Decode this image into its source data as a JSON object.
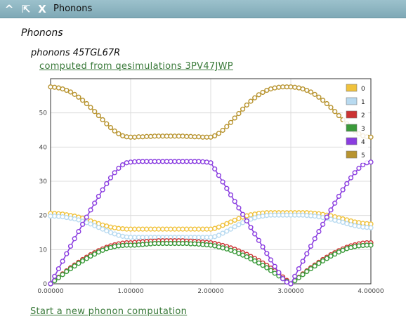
{
  "titlebar": {
    "collapse_glyph": "^",
    "expand_glyph": "⇱",
    "close_glyph": "X",
    "title": "Phonons"
  },
  "section_title": "Phonons",
  "subtitle": "phonons 45TGL67R",
  "computed_link": "computed from qesimulations 3PV47JWP",
  "start_link": "Start a new phonon computation",
  "chart_data": {
    "type": "line",
    "title": "",
    "xlabel": "",
    "ylabel": "",
    "xlim": [
      0,
      4
    ],
    "ylim": [
      0,
      60
    ],
    "x_ticks": [
      "0.00000",
      "1.00000",
      "2.00000",
      "3.00000",
      "4.00000"
    ],
    "y_ticks": [
      "0",
      "10",
      "20",
      "30",
      "40",
      "50"
    ],
    "grid": true,
    "legend_position": "top-right",
    "x": [
      0,
      0.05,
      0.1,
      0.15,
      0.2,
      0.25,
      0.3,
      0.35,
      0.4,
      0.45,
      0.5,
      0.55,
      0.6,
      0.65,
      0.7,
      0.75,
      0.8,
      0.85,
      0.9,
      0.95,
      1.0,
      1.05,
      1.1,
      1.15,
      1.2,
      1.25,
      1.3,
      1.35,
      1.4,
      1.45,
      1.5,
      1.55,
      1.6,
      1.65,
      1.7,
      1.75,
      1.8,
      1.85,
      1.9,
      1.95,
      2.0,
      2.05,
      2.1,
      2.15,
      2.2,
      2.25,
      2.3,
      2.35,
      2.4,
      2.45,
      2.5,
      2.55,
      2.6,
      2.65,
      2.7,
      2.75,
      2.8,
      2.85,
      2.9,
      2.95,
      3.0,
      3.05,
      3.1,
      3.15,
      3.2,
      3.25,
      3.3,
      3.35,
      3.4,
      3.45,
      3.5,
      3.55,
      3.6,
      3.65,
      3.7,
      3.75,
      3.8,
      3.85,
      3.9,
      3.95,
      4.0
    ],
    "series": [
      {
        "name": "0",
        "color": "#f0c23c",
        "values": [
          20.6,
          20.6,
          20.5,
          20.4,
          20.2,
          20.0,
          19.8,
          19.5,
          19.2,
          18.8,
          18.4,
          18.0,
          17.6,
          17.2,
          16.9,
          16.6,
          16.4,
          16.2,
          16.1,
          16.0,
          16.0,
          16.0,
          16.0,
          16.0,
          16.0,
          16.0,
          16.0,
          16.0,
          16.0,
          16.0,
          16.0,
          16.0,
          16.0,
          16.0,
          16.0,
          16.0,
          16.0,
          16.0,
          16.0,
          16.0,
          16.0,
          16.2,
          16.6,
          17.1,
          17.6,
          18.1,
          18.6,
          19.1,
          19.5,
          19.9,
          20.2,
          20.4,
          20.6,
          20.7,
          20.8,
          20.8,
          20.8,
          20.8,
          20.8,
          20.8,
          20.8,
          20.8,
          20.8,
          20.8,
          20.8,
          20.7,
          20.6,
          20.5,
          20.3,
          20.1,
          19.9,
          19.6,
          19.3,
          19.0,
          18.7,
          18.4,
          18.1,
          17.9,
          17.7,
          17.6,
          17.5
        ]
      },
      {
        "name": "1",
        "color": "#b8daf0",
        "values": [
          19.8,
          19.8,
          19.7,
          19.6,
          19.4,
          19.2,
          19.0,
          18.7,
          18.3,
          17.9,
          17.5,
          17.0,
          16.5,
          16.0,
          15.5,
          15.0,
          14.6,
          14.2,
          13.9,
          13.7,
          13.6,
          13.6,
          13.6,
          13.6,
          13.6,
          13.6,
          13.6,
          13.6,
          13.6,
          13.6,
          13.6,
          13.6,
          13.6,
          13.6,
          13.6,
          13.6,
          13.6,
          13.6,
          13.6,
          13.6,
          13.6,
          13.8,
          14.2,
          14.8,
          15.4,
          16.0,
          16.7,
          17.3,
          17.9,
          18.4,
          18.9,
          19.3,
          19.6,
          19.8,
          20.0,
          20.1,
          20.1,
          20.1,
          20.1,
          20.1,
          20.1,
          20.1,
          20.1,
          20.1,
          20.0,
          19.9,
          19.8,
          19.6,
          19.4,
          19.2,
          18.9,
          18.6,
          18.3,
          18.0,
          17.6,
          17.3,
          17.0,
          16.8,
          16.6,
          16.5,
          16.4
        ]
      },
      {
        "name": "2",
        "color": "#cc3333",
        "values": [
          0.0,
          1.0,
          1.9,
          2.9,
          3.8,
          4.7,
          5.5,
          6.3,
          7.1,
          7.8,
          8.5,
          9.1,
          9.7,
          10.2,
          10.7,
          11.1,
          11.4,
          11.7,
          11.9,
          12.0,
          12.0,
          12.1,
          12.2,
          12.3,
          12.4,
          12.5,
          12.5,
          12.6,
          12.6,
          12.6,
          12.6,
          12.6,
          12.6,
          12.6,
          12.5,
          12.5,
          12.4,
          12.3,
          12.2,
          12.1,
          12.0,
          11.8,
          11.5,
          11.2,
          10.9,
          10.5,
          10.1,
          9.6,
          9.1,
          8.6,
          8.0,
          7.4,
          6.8,
          6.1,
          5.4,
          4.6,
          3.8,
          2.9,
          2.0,
          1.0,
          0.0,
          1.0,
          1.9,
          2.9,
          3.8,
          4.7,
          5.5,
          6.3,
          7.1,
          7.8,
          8.5,
          9.1,
          9.7,
          10.2,
          10.7,
          11.1,
          11.4,
          11.7,
          11.9,
          12.0,
          12.0
        ]
      },
      {
        "name": "3",
        "color": "#3a9a3a",
        "values": [
          0.0,
          0.9,
          1.8,
          2.7,
          3.6,
          4.4,
          5.2,
          6.0,
          6.7,
          7.4,
          8.1,
          8.7,
          9.3,
          9.8,
          10.3,
          10.6,
          10.9,
          11.1,
          11.2,
          11.3,
          11.3,
          11.3,
          11.4,
          11.5,
          11.6,
          11.7,
          11.8,
          11.8,
          11.8,
          11.8,
          11.8,
          11.8,
          11.8,
          11.8,
          11.8,
          11.7,
          11.7,
          11.6,
          11.5,
          11.4,
          11.3,
          11.1,
          10.8,
          10.5,
          10.2,
          9.8,
          9.4,
          8.9,
          8.4,
          7.9,
          7.3,
          6.7,
          6.1,
          5.4,
          4.7,
          3.9,
          3.1,
          2.3,
          1.5,
          0.7,
          0.0,
          0.9,
          1.8,
          2.7,
          3.6,
          4.4,
          5.2,
          6.0,
          6.7,
          7.4,
          8.1,
          8.7,
          9.3,
          9.8,
          10.3,
          10.6,
          10.9,
          11.1,
          11.2,
          11.3,
          11.3
        ]
      },
      {
        "name": "4",
        "color": "#8a3de0",
        "values": [
          0.0,
          2.2,
          4.4,
          6.6,
          8.8,
          11.0,
          13.2,
          15.3,
          17.4,
          19.5,
          21.6,
          23.6,
          25.6,
          27.5,
          29.3,
          31.0,
          32.5,
          33.8,
          34.8,
          35.4,
          35.6,
          35.7,
          35.8,
          35.8,
          35.8,
          35.8,
          35.8,
          35.8,
          35.8,
          35.8,
          35.8,
          35.8,
          35.8,
          35.8,
          35.8,
          35.8,
          35.8,
          35.8,
          35.7,
          35.6,
          35.4,
          33.6,
          31.7,
          29.8,
          27.9,
          26.0,
          24.1,
          22.2,
          20.3,
          18.4,
          16.5,
          14.6,
          12.7,
          10.8,
          8.9,
          7.0,
          5.1,
          3.3,
          1.5,
          0.5,
          0.0,
          2.2,
          4.4,
          6.6,
          8.8,
          11.0,
          13.2,
          15.3,
          17.4,
          19.5,
          21.6,
          23.6,
          25.6,
          27.5,
          29.3,
          31.0,
          32.5,
          33.8,
          34.8,
          35.4,
          35.6
        ]
      },
      {
        "name": "5",
        "color": "#b89430",
        "values": [
          57.6,
          57.5,
          57.3,
          57.0,
          56.6,
          56.1,
          55.4,
          54.6,
          53.7,
          52.7,
          51.6,
          50.4,
          49.2,
          48.0,
          46.8,
          45.7,
          44.7,
          43.9,
          43.3,
          43.0,
          42.9,
          42.9,
          43.0,
          43.0,
          43.1,
          43.1,
          43.2,
          43.2,
          43.2,
          43.2,
          43.2,
          43.2,
          43.2,
          43.2,
          43.1,
          43.1,
          43.0,
          43.0,
          42.9,
          42.9,
          42.9,
          43.3,
          44.0,
          44.9,
          46.0,
          47.2,
          48.5,
          49.8,
          51.1,
          52.3,
          53.4,
          54.4,
          55.3,
          56.0,
          56.6,
          57.0,
          57.3,
          57.5,
          57.6,
          57.6,
          57.6,
          57.5,
          57.3,
          57.0,
          56.6,
          56.1,
          55.4,
          54.6,
          53.7,
          52.7,
          51.6,
          50.4,
          49.2,
          48.0,
          46.8,
          45.7,
          44.7,
          43.9,
          43.3,
          43.0,
          42.9
        ]
      }
    ]
  }
}
